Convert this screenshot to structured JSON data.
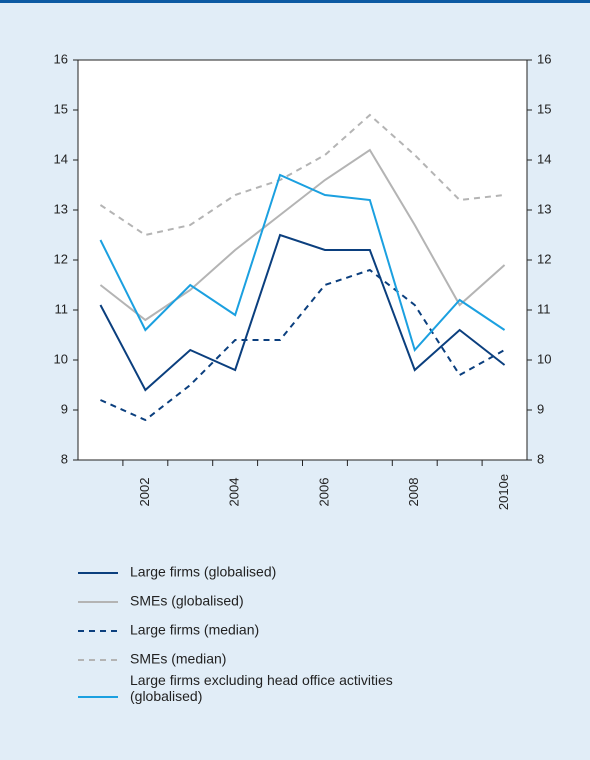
{
  "chart_data": {
    "type": "line",
    "categories": [
      null,
      "2002",
      null,
      "2004",
      null,
      "2006",
      null,
      "2008",
      null,
      "2010e"
    ],
    "series": [
      {
        "name": "Large firms (globalised)",
        "color": "#0b3f7e",
        "dashed": false,
        "values": [
          11.1,
          9.4,
          10.2,
          9.8,
          12.5,
          12.2,
          12.2,
          9.8,
          10.6,
          9.9
        ]
      },
      {
        "name": "SMEs (globalised)",
        "color": "#b4b4b4",
        "dashed": false,
        "values": [
          11.5,
          10.8,
          11.4,
          12.2,
          12.9,
          13.6,
          14.2,
          12.7,
          11.1,
          11.9
        ]
      },
      {
        "name": "Large firms (median)",
        "color": "#0b3f7e",
        "dashed": true,
        "values": [
          9.2,
          8.8,
          9.5,
          10.4,
          10.4,
          11.5,
          11.8,
          11.1,
          9.7,
          10.2
        ]
      },
      {
        "name": "SMEs (median)",
        "color": "#b4b4b4",
        "dashed": true,
        "values": [
          13.1,
          12.5,
          12.7,
          13.3,
          13.6,
          14.1,
          14.9,
          14.1,
          13.2,
          13.3
        ]
      },
      {
        "name": "Large firms excluding head office activities (globalised)",
        "color": "#1ba0e0",
        "dashed": false,
        "values": [
          12.4,
          10.6,
          11.5,
          10.9,
          13.7,
          13.3,
          13.2,
          10.2,
          11.2,
          10.6
        ]
      }
    ],
    "ylim": [
      8,
      16
    ],
    "yticks": [
      8,
      9,
      10,
      11,
      12,
      13,
      14,
      15,
      16
    ],
    "mirror_y_axis": true,
    "grid": false
  }
}
